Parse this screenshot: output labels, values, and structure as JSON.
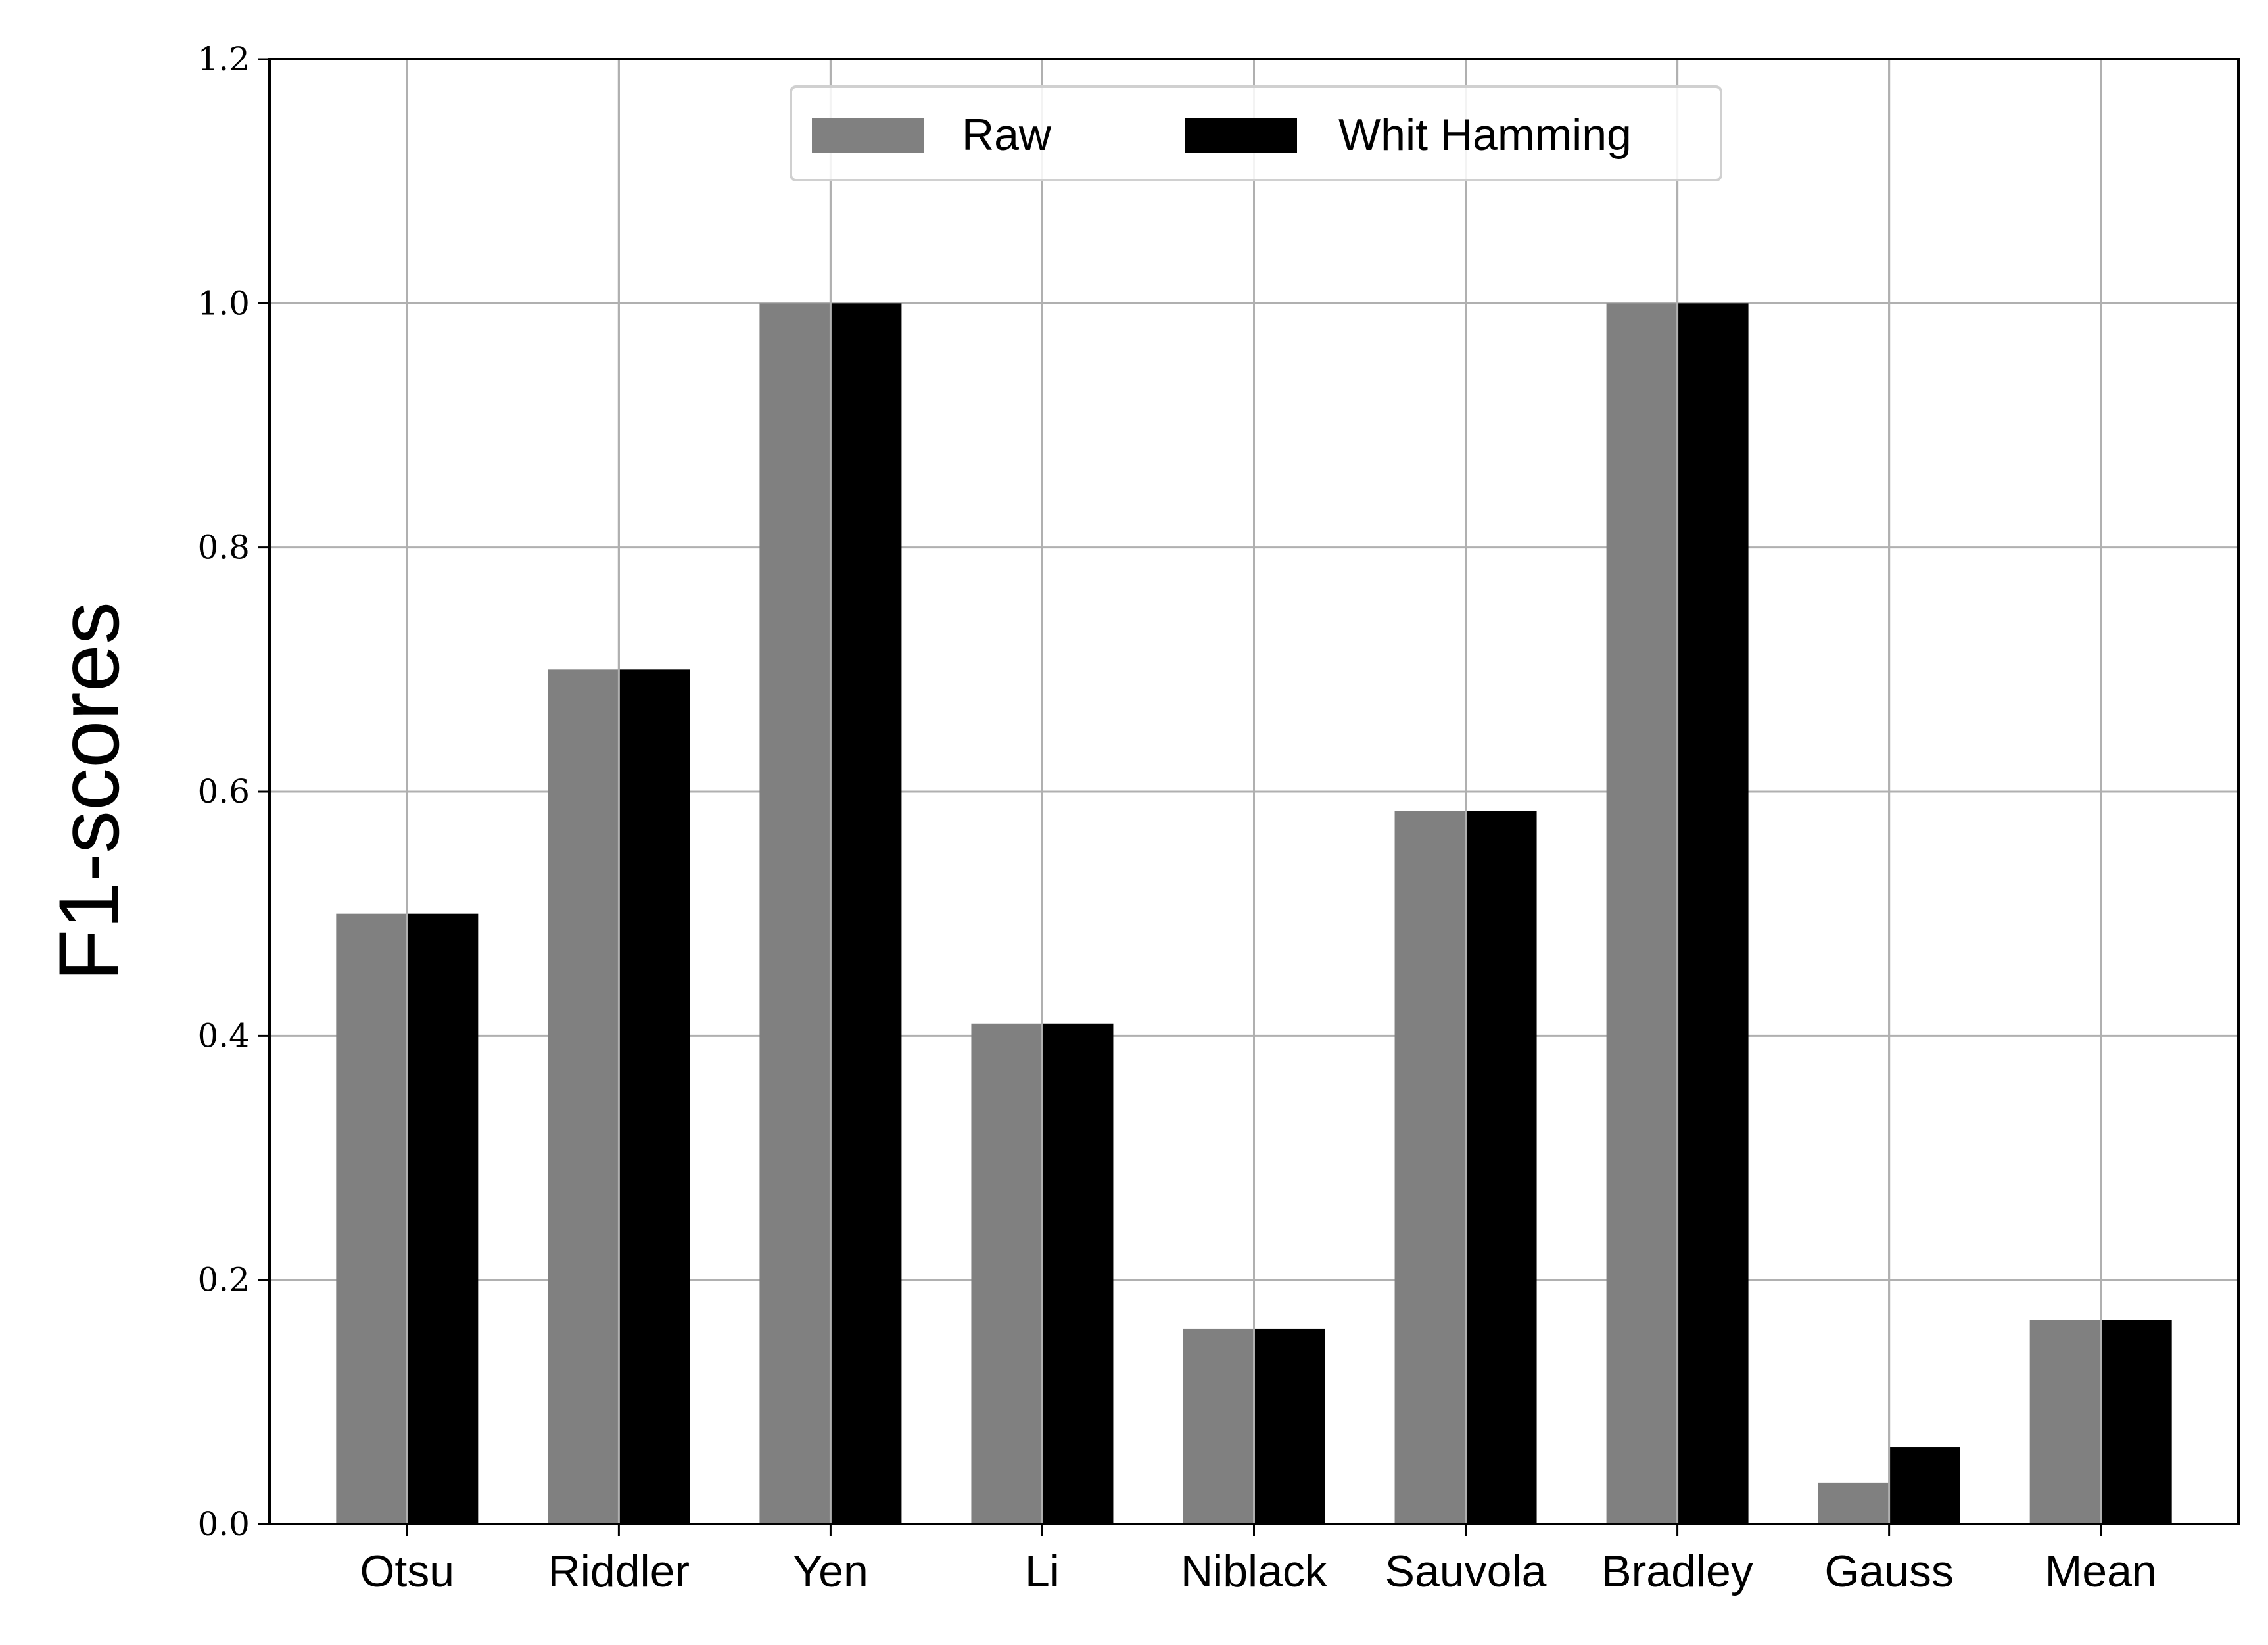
{
  "chart_data": {
    "type": "bar",
    "categories": [
      "Otsu",
      "Riddler",
      "Yen",
      "Li",
      "Niblack",
      "Sauvola",
      "Bradley",
      "Gauss",
      "Mean"
    ],
    "series": [
      {
        "name": "Raw",
        "color": "#808080",
        "values": [
          0.5,
          0.7,
          1.0,
          0.41,
          0.16,
          0.584,
          1.0,
          0.034,
          0.167
        ]
      },
      {
        "name": "Whit Hamming",
        "color": "#000000",
        "values": [
          0.5,
          0.7,
          1.0,
          0.41,
          0.16,
          0.584,
          1.0,
          0.063,
          0.167
        ]
      }
    ],
    "title": "",
    "xlabel": "",
    "ylabel": "F1-scores",
    "ylim": [
      0,
      1.2
    ],
    "yticks": [
      "0.0",
      "0.2",
      "0.4",
      "0.6",
      "0.8",
      "1.0",
      "1.2"
    ],
    "grid": true,
    "legend_position": "top-center"
  }
}
